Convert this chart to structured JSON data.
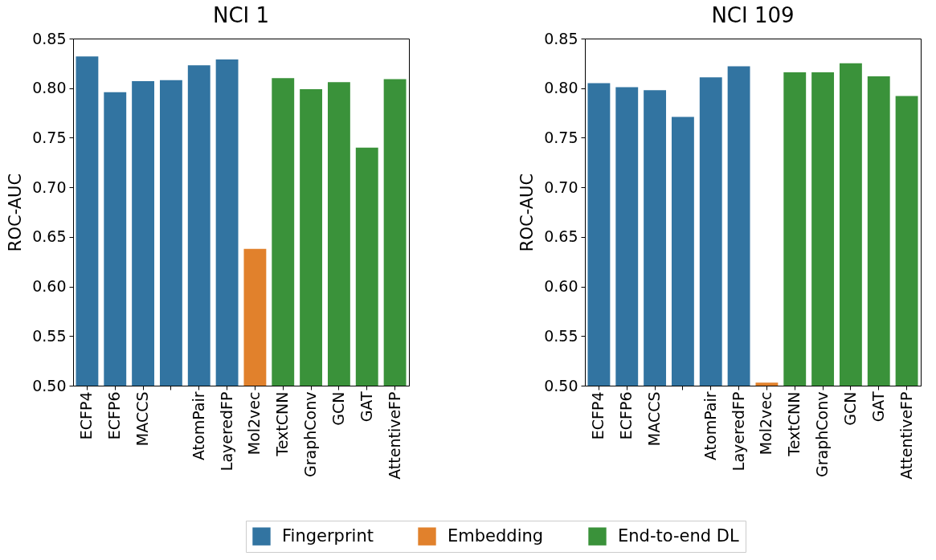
{
  "chart_data": [
    {
      "type": "bar",
      "title": "NCI 1",
      "ylabel": "ROC-AUC",
      "categories": [
        "ECFP4",
        "ECFP6",
        "MACCS",
        null,
        "AtomPair",
        "LayeredFP",
        "Mol2vec",
        "TextCNN",
        "GraphConv",
        "GCN",
        "GAT",
        "AttentiveFP"
      ],
      "series": [
        {
          "name": "Fingerprint",
          "color": "#3274a1",
          "values": [
            0.832,
            0.796,
            0.807,
            0.808,
            0.823,
            0.829,
            null,
            null,
            null,
            null,
            null,
            null
          ]
        },
        {
          "name": "Embedding",
          "color": "#e1812c",
          "values": [
            null,
            null,
            null,
            null,
            null,
            null,
            0.638,
            null,
            null,
            null,
            null,
            null
          ]
        },
        {
          "name": "End-to-end DL",
          "color": "#3a923a",
          "values": [
            null,
            null,
            null,
            null,
            null,
            null,
            null,
            0.81,
            0.799,
            0.806,
            0.74,
            0.809
          ]
        }
      ],
      "ylim": [
        0.5,
        0.85
      ],
      "yticks": [
        {
          "value": 0.5,
          "label": "0.50"
        },
        0.55,
        {
          "value": 0.6,
          "label": "0.60"
        },
        0.65,
        {
          "value": 0.7,
          "label": "0.70"
        },
        0.75,
        {
          "value": 0.8,
          "label": "0.80"
        },
        0.85
      ],
      "grid": false,
      "legend": "bottom"
    },
    {
      "type": "bar",
      "title": "NCI 109",
      "ylabel": "ROC-AUC",
      "categories": [
        "ECFP4",
        "ECFP6",
        "MACCS",
        null,
        "AtomPair",
        "LayeredFP",
        "Mol2vec",
        "TextCNN",
        "GraphConv",
        "GCN",
        "GAT",
        "AttentiveFP"
      ],
      "series": [
        {
          "name": "Fingerprint",
          "color": "#3274a1",
          "values": [
            0.805,
            0.801,
            0.798,
            0.771,
            0.811,
            0.822,
            null,
            null,
            null,
            null,
            null,
            null
          ]
        },
        {
          "name": "Embedding",
          "color": "#e1812c",
          "values": [
            null,
            null,
            null,
            null,
            null,
            null,
            0.503,
            null,
            null,
            null,
            null,
            null
          ]
        },
        {
          "name": "End-to-end DL",
          "color": "#3a923a",
          "values": [
            null,
            null,
            null,
            null,
            null,
            null,
            null,
            0.816,
            0.816,
            0.825,
            0.812,
            0.792
          ]
        }
      ],
      "ylim": [
        0.5,
        0.85
      ],
      "yticks": [
        {
          "value": 0.5,
          "label": "0.50"
        },
        0.55,
        {
          "value": 0.6,
          "label": "0.60"
        },
        0.65,
        {
          "value": 0.7,
          "label": "0.70"
        },
        0.75,
        {
          "value": 0.8,
          "label": "0.80"
        },
        0.85
      ],
      "grid": false,
      "legend": "bottom"
    }
  ]
}
